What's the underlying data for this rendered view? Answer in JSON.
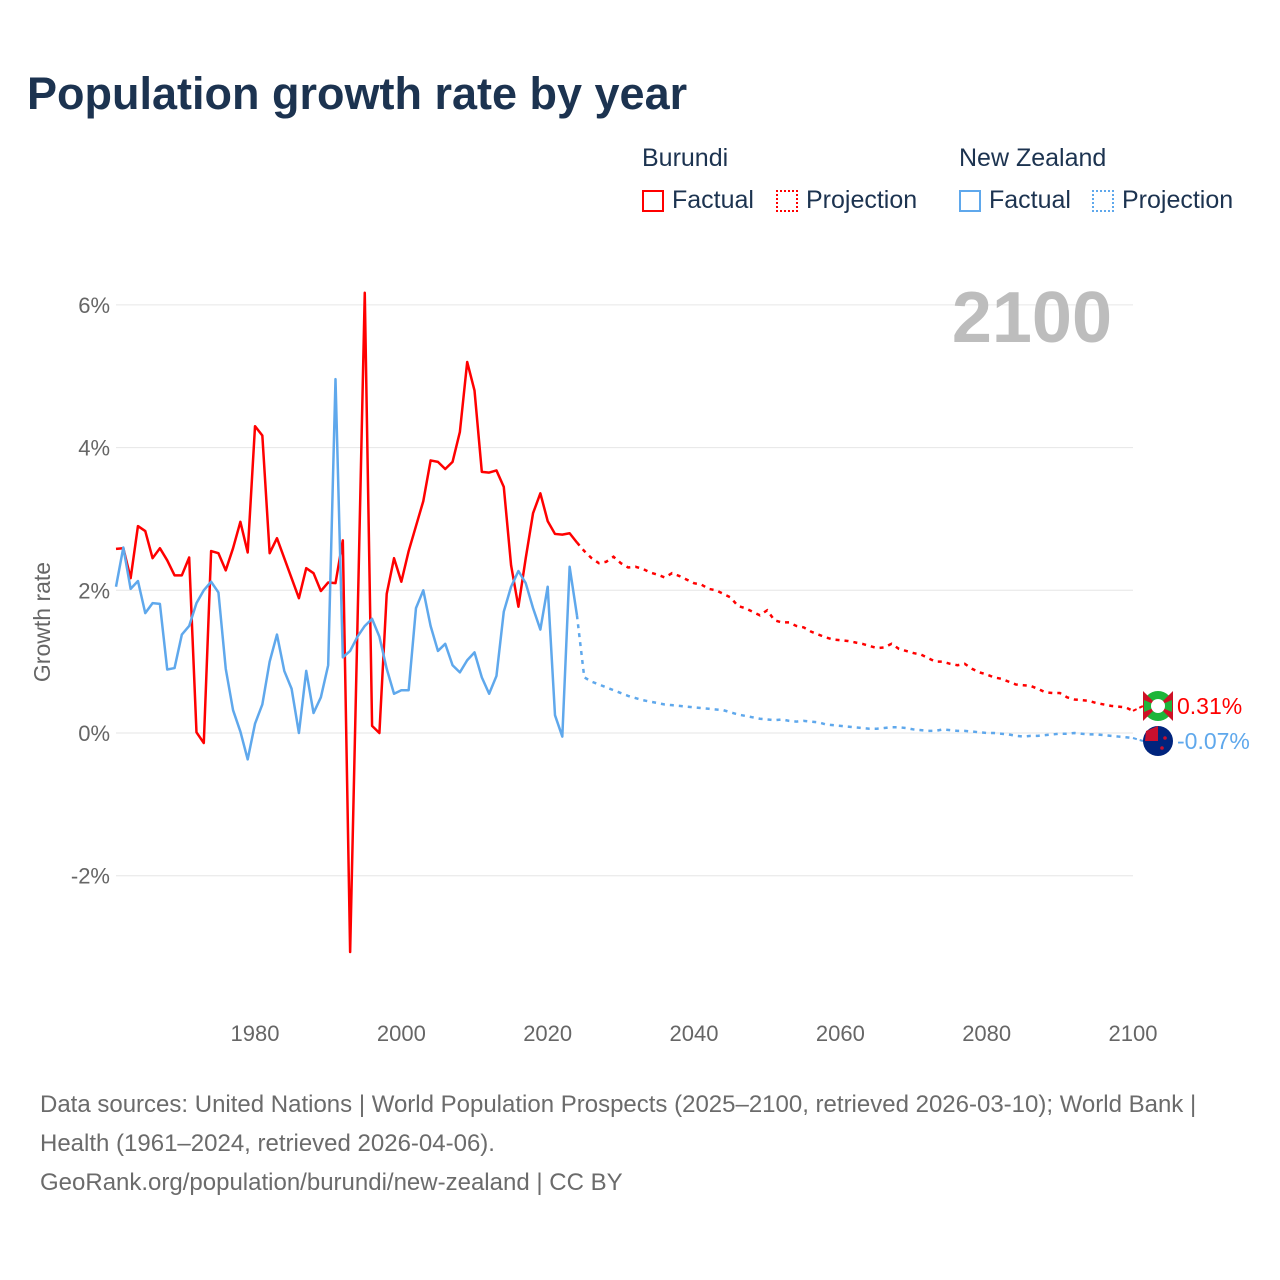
{
  "title": "Population growth rate by year",
  "legend": {
    "groups": [
      {
        "name": "Burundi",
        "factual": "Factual",
        "projection": "Projection",
        "color": "#ff0000"
      },
      {
        "name": "New Zealand",
        "factual": "Factual",
        "projection": "Projection",
        "color": "#5fa8ec"
      }
    ]
  },
  "footer": {
    "sources": "Data sources: United Nations | World Population Prospects (2025–2100, retrieved 2026-03-10); World Bank | Health (1961–2024, retrieved 2026-04-06).",
    "link": "GeoRank.org/population/burundi/new-zealand | CC BY"
  },
  "chart_data": {
    "type": "line",
    "title": "Population growth rate by year",
    "ylabel": "Growth rate",
    "xlabel": "",
    "year_label": "2100",
    "xlim": [
      1961,
      2100
    ],
    "ylim": [
      -3.1,
      6.2
    ],
    "x_ticks": [
      1980,
      2000,
      2020,
      2040,
      2060,
      2080,
      2100
    ],
    "x_tick_labels": [
      "1980",
      "2000",
      "2020",
      "2040",
      "2060",
      "2080",
      "2100"
    ],
    "y_ticks": [
      -2,
      0,
      2,
      4,
      6
    ],
    "y_tick_labels": [
      "-2%",
      "0%",
      "2%",
      "4%",
      "6%"
    ],
    "grid": true,
    "series": [
      {
        "name": "Burundi",
        "color": "#ff0000",
        "end_label": "0.31%",
        "factual_start": 1961,
        "factual": [
          2.58,
          2.59,
          2.17,
          2.9,
          2.83,
          2.45,
          2.59,
          2.42,
          2.21,
          2.21,
          2.46,
          0.01,
          -0.14,
          2.55,
          2.52,
          2.28,
          2.59,
          2.96,
          2.53,
          4.3,
          4.17,
          2.52,
          2.73,
          2.45,
          2.17,
          1.89,
          2.31,
          2.24,
          1.99,
          2.11,
          2.1,
          2.7,
          -3.07,
          1.5,
          6.17,
          0.1,
          0.0,
          1.95,
          2.45,
          2.12,
          2.55,
          2.9,
          3.25,
          3.82,
          3.8,
          3.7,
          3.8,
          4.22,
          5.2,
          4.8,
          3.66,
          3.65,
          3.68,
          3.45,
          2.35,
          1.77,
          2.45,
          3.08,
          3.36,
          2.97,
          2.79,
          2.78,
          2.8,
          2.67
        ],
        "projection_start": 2025,
        "projection": [
          2.55,
          2.45,
          2.38,
          2.4,
          2.47,
          2.38,
          2.32,
          2.33,
          2.3,
          2.25,
          2.22,
          2.18,
          2.24,
          2.2,
          2.15,
          2.1,
          2.08,
          2.02,
          2.0,
          1.95,
          1.9,
          1.78,
          1.75,
          1.7,
          1.65,
          1.72,
          1.58,
          1.55,
          1.55,
          1.5,
          1.48,
          1.42,
          1.38,
          1.34,
          1.31,
          1.3,
          1.29,
          1.27,
          1.25,
          1.22,
          1.19,
          1.2,
          1.25,
          1.18,
          1.15,
          1.12,
          1.1,
          1.05,
          1.0,
          1.0,
          0.97,
          0.95,
          0.97,
          0.9,
          0.85,
          0.82,
          0.78,
          0.76,
          0.72,
          0.68,
          0.67,
          0.66,
          0.62,
          0.57,
          0.56,
          0.56,
          0.5,
          0.47,
          0.46,
          0.45,
          0.42,
          0.4,
          0.38,
          0.37,
          0.36,
          0.31
        ]
      },
      {
        "name": "New Zealand",
        "color": "#5fa8ec",
        "end_label": "-0.07%",
        "factual_start": 1961,
        "factual": [
          2.05,
          2.6,
          2.02,
          2.13,
          1.68,
          1.82,
          1.81,
          0.89,
          0.91,
          1.38,
          1.5,
          1.82,
          2.0,
          2.12,
          1.97,
          0.9,
          0.32,
          0.02,
          -0.37,
          0.13,
          0.4,
          1.0,
          1.38,
          0.87,
          0.62,
          0.0,
          0.87,
          0.28,
          0.5,
          0.95,
          4.96,
          1.06,
          1.15,
          1.35,
          1.5,
          1.6,
          1.35,
          0.9,
          0.55,
          0.6,
          0.6,
          1.75,
          2.0,
          1.5,
          1.15,
          1.25,
          0.95,
          0.85,
          1.02,
          1.13,
          0.78,
          0.55,
          0.8,
          1.7,
          2.05,
          2.27,
          2.1,
          1.75,
          1.45,
          2.05,
          0.25,
          -0.05,
          2.33,
          1.65
        ],
        "projection_start": 2025,
        "projection": [
          0.78,
          0.72,
          0.68,
          0.64,
          0.6,
          0.56,
          0.52,
          0.49,
          0.46,
          0.44,
          0.42,
          0.4,
          0.39,
          0.38,
          0.37,
          0.36,
          0.35,
          0.34,
          0.33,
          0.32,
          0.29,
          0.26,
          0.24,
          0.22,
          0.2,
          0.19,
          0.18,
          0.19,
          0.17,
          0.16,
          0.17,
          0.16,
          0.15,
          0.12,
          0.11,
          0.1,
          0.09,
          0.08,
          0.07,
          0.06,
          0.06,
          0.07,
          0.08,
          0.08,
          0.07,
          0.05,
          0.04,
          0.03,
          0.03,
          0.05,
          0.04,
          0.03,
          0.03,
          0.02,
          0.01,
          0.0,
          0.0,
          -0.01,
          -0.02,
          -0.04,
          -0.05,
          -0.04,
          -0.04,
          -0.03,
          -0.02,
          -0.01,
          -0.01,
          0.0,
          -0.01,
          -0.02,
          -0.02,
          -0.03,
          -0.04,
          -0.05,
          -0.06,
          -0.07
        ]
      }
    ]
  }
}
